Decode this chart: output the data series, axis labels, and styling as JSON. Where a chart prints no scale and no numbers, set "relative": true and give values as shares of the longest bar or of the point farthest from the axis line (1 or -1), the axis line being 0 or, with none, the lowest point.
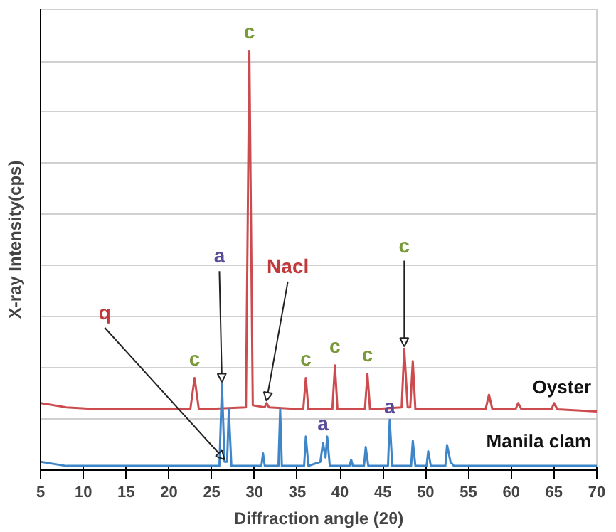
{
  "chart_data": {
    "type": "line",
    "relative": true,
    "xlabel": "Diffraction angle (2θ)",
    "ylabel": "X-ray Intensity(cps)",
    "xlim": [
      5,
      70
    ],
    "xticks": [
      5,
      10,
      15,
      20,
      25,
      30,
      35,
      40,
      45,
      50,
      55,
      60,
      65,
      70
    ],
    "grid": "y",
    "legend": false,
    "series": [
      {
        "name": "Oyster",
        "color": "#cc4b4f",
        "x": [
          5,
          8,
          12,
          22.5,
          23,
          23.5,
          29,
          29.4,
          29.8,
          31.2,
          31.4,
          31.7,
          35.7,
          36,
          36.3,
          39.1,
          39.4,
          39.7,
          42.9,
          43.2,
          43.5,
          47.2,
          47.5,
          47.9,
          48.2,
          48.5,
          48.8,
          57,
          57.4,
          57.8,
          60.5,
          60.8,
          61.2,
          64.7,
          65,
          65.4,
          70
        ],
        "values": [
          0.16,
          0.15,
          0.145,
          0.145,
          0.22,
          0.145,
          0.15,
          1.0,
          0.155,
          0.15,
          0.16,
          0.15,
          0.145,
          0.22,
          0.145,
          0.145,
          0.25,
          0.145,
          0.145,
          0.23,
          0.145,
          0.15,
          0.29,
          0.15,
          0.15,
          0.26,
          0.145,
          0.145,
          0.18,
          0.145,
          0.145,
          0.16,
          0.145,
          0.145,
          0.16,
          0.145,
          0.14
        ]
      },
      {
        "name": "Manila clam",
        "color": "#3f86c8",
        "x": [
          5,
          8,
          25.9,
          26.2,
          26.5,
          26.8,
          27,
          27.3,
          30.8,
          31,
          31.2,
          32.8,
          33,
          33.2,
          35.8,
          36,
          36.3,
          37.7,
          38,
          38.3,
          38.5,
          38.8,
          41.1,
          41.3,
          41.5,
          42.8,
          43,
          43.3,
          45.6,
          45.8,
          46.1,
          48.3,
          48.5,
          48.8,
          50.1,
          50.3,
          50.6,
          52.3,
          52.5,
          52.9,
          53.3,
          70
        ],
        "values": [
          0.02,
          0.01,
          0.01,
          0.205,
          0.02,
          0.02,
          0.145,
          0.01,
          0.01,
          0.04,
          0.01,
          0.01,
          0.145,
          0.01,
          0.01,
          0.08,
          0.01,
          0.02,
          0.065,
          0.03,
          0.08,
          0.01,
          0.01,
          0.025,
          0.01,
          0.01,
          0.055,
          0.01,
          0.01,
          0.12,
          0.01,
          0.01,
          0.07,
          0.01,
          0.01,
          0.045,
          0.01,
          0.01,
          0.06,
          0.02,
          0.01,
          0.01
        ]
      }
    ],
    "annotations": [
      {
        "text": "c",
        "x": 23,
        "y": 0.22
      },
      {
        "text": "c",
        "x": 29.4,
        "y": 1.0
      },
      {
        "text": "c",
        "x": 36,
        "y": 0.22
      },
      {
        "text": "c",
        "x": 39.4,
        "y": 0.25
      },
      {
        "text": "c",
        "x": 43.2,
        "y": 0.23
      },
      {
        "text": "c",
        "x": 47.5,
        "y": 0.29
      },
      {
        "text": "a",
        "x": 26.2,
        "y": 0.205
      },
      {
        "text": "a",
        "x": 38,
        "y": 0.08
      },
      {
        "text": "a",
        "x": 45.8,
        "y": 0.12
      },
      {
        "text": "q",
        "x": 26.5,
        "y": 0.02
      },
      {
        "text": "Nacl",
        "x": 31.4,
        "y": 0.16
      }
    ]
  }
}
